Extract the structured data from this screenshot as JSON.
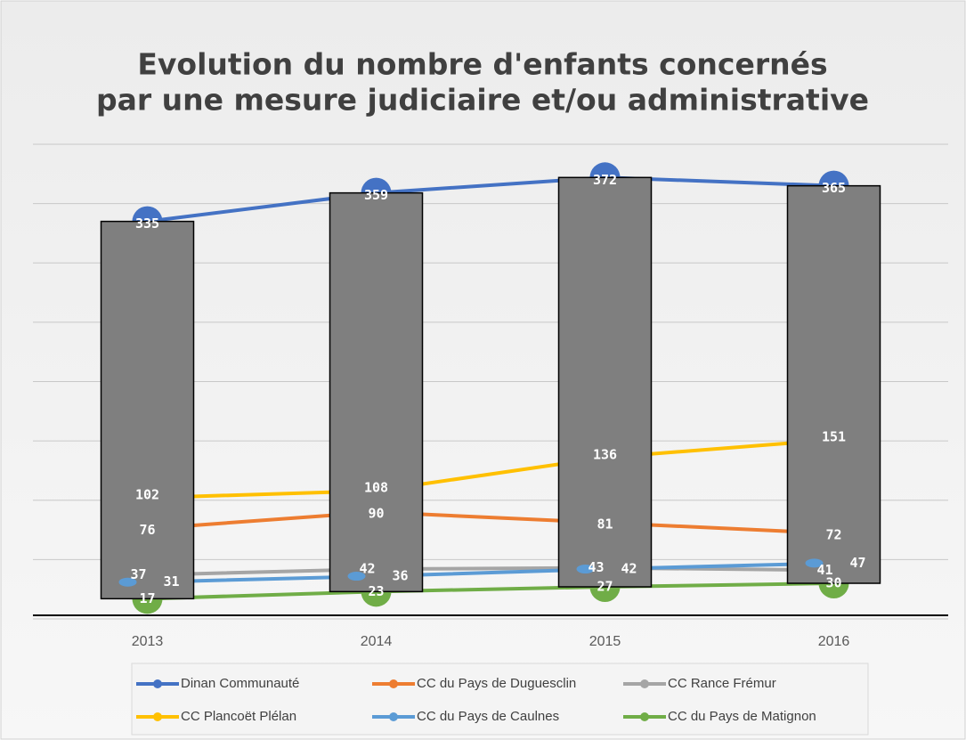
{
  "chart_data": {
    "type": "line",
    "title": [
      "Evolution du nombre d'enfants concernés",
      "par une mesure judiciaire et/ou administrative"
    ],
    "categories": [
      "2013",
      "2014",
      "2015",
      "2016"
    ],
    "series": [
      {
        "name": "Dinan Communauté",
        "color": "#4472c4",
        "values": [
          335,
          359,
          372,
          365
        ]
      },
      {
        "name": "CC du Pays de Duguesclin",
        "color": "#ed7d31",
        "values": [
          76,
          90,
          81,
          72
        ]
      },
      {
        "name": "CC Rance Frémur",
        "color": "#a5a5a5",
        "values": [
          37,
          42,
          43,
          41
        ]
      },
      {
        "name": "CC Plancoët Plélan",
        "color": "#ffc000",
        "values": [
          102,
          108,
          136,
          151
        ]
      },
      {
        "name": "CC du Pays de Caulnes",
        "color": "#5b9bd5",
        "values": [
          31,
          36,
          42,
          47
        ]
      },
      {
        "name": "CC du Pays de Matignon",
        "color": "#70ad47",
        "values": [
          17,
          23,
          27,
          30
        ]
      }
    ],
    "ylim": [
      0,
      400
    ],
    "yticks": [
      0,
      50,
      100,
      150,
      200,
      250,
      300,
      350,
      400
    ],
    "grid": true,
    "bar_color": "#7f7f7f",
    "legend": "bottom"
  }
}
